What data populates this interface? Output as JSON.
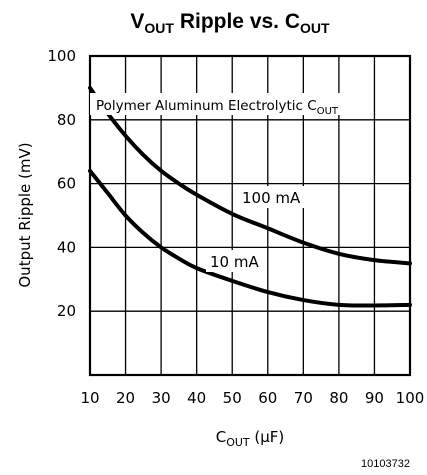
{
  "chart_data": {
    "type": "line",
    "title": {
      "main": "V",
      "sub1": "OUT",
      "mid": " Ripple vs. C",
      "sub2": "OUT"
    },
    "annotation": {
      "main": "Polymer Aluminum Electrolytic C",
      "sub": "OUT"
    },
    "xlabel": {
      "main": "C",
      "sub": "OUT",
      "unit": " (μF)"
    },
    "ylabel": "Output Ripple (mV)",
    "xlim": [
      10,
      100
    ],
    "ylim": [
      0,
      100
    ],
    "x_ticks": [
      10,
      20,
      30,
      40,
      50,
      60,
      70,
      80,
      90,
      100
    ],
    "y_ticks": [
      20,
      40,
      60,
      80,
      100
    ],
    "grid": true,
    "series": [
      {
        "name": "100 mA",
        "x": [
          10,
          15,
          20,
          25,
          30,
          35,
          40,
          50,
          60,
          70,
          80,
          90,
          100
        ],
        "y": [
          90,
          82,
          75,
          69,
          64,
          60,
          56.5,
          50.5,
          46,
          41.5,
          38,
          36,
          35
        ]
      },
      {
        "name": "10 mA",
        "x": [
          10,
          15,
          20,
          25,
          30,
          35,
          40,
          50,
          60,
          70,
          80,
          90,
          100
        ],
        "y": [
          64,
          57,
          50,
          44.5,
          40,
          36.5,
          33.5,
          29.5,
          26,
          23.5,
          22,
          21.8,
          22
        ]
      }
    ]
  },
  "figure_id": "10103732"
}
